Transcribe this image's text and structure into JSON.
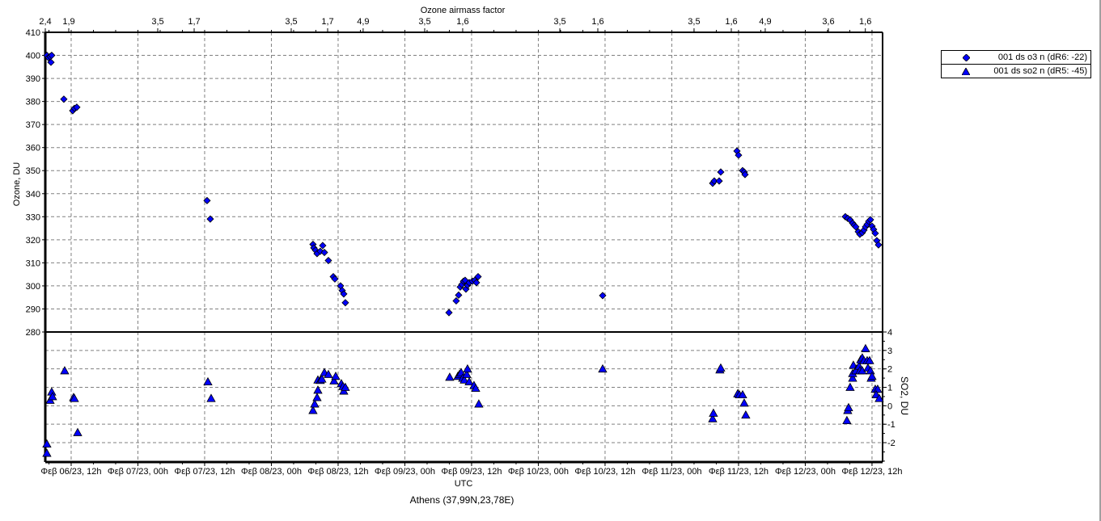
{
  "chart_data": [
    {
      "type": "scatter",
      "panel": "top",
      "xlabel": "UTC",
      "ylabel": "Ozone, DU",
      "ylim": [
        280,
        410
      ],
      "xlim": [
        "2023-02-06 07:21",
        "2023-02-12 13:54"
      ],
      "yticks": [
        280,
        290,
        300,
        310,
        320,
        330,
        340,
        350,
        360,
        370,
        380,
        390,
        400,
        410
      ],
      "grid": true,
      "series": [
        {
          "name": "001 ds o3  n (dR6: -22)",
          "marker": "diamond",
          "color": "#0000ff",
          "points": [
            [
              "2023-02-06 07:38",
              400
            ],
            [
              "2023-02-06 07:56",
              399
            ],
            [
              "2023-02-06 08:13",
              399.5
            ],
            [
              "2023-02-06 08:30",
              400
            ],
            [
              "2023-02-06 08:22",
              397
            ],
            [
              "2023-02-06 10:41",
              381
            ],
            [
              "2023-02-06 12:17",
              376
            ],
            [
              "2023-02-06 12:35",
              377
            ],
            [
              "2023-02-06 13:01",
              377.5
            ],
            [
              "2023-02-07 12:26",
              337
            ],
            [
              "2023-02-07 13:01",
              329
            ],
            [
              "2023-02-08 07:29",
              318
            ],
            [
              "2023-02-08 07:38",
              316.5
            ],
            [
              "2023-02-08 07:56",
              315.5
            ],
            [
              "2023-02-08 08:13",
              314
            ],
            [
              "2023-02-08 08:48",
              315
            ],
            [
              "2023-02-08 09:14",
              317.5
            ],
            [
              "2023-02-08 09:32",
              314.5
            ],
            [
              "2023-02-08 10:15",
              311
            ],
            [
              "2023-02-08 11:08",
              304
            ],
            [
              "2023-02-08 11:25",
              303
            ],
            [
              "2023-02-08 12:26",
              300
            ],
            [
              "2023-02-08 12:44",
              298
            ],
            [
              "2023-02-08 13:01",
              296.5
            ],
            [
              "2023-02-08 13:18",
              292.7
            ],
            [
              "2023-02-09 07:56",
              288.4
            ],
            [
              "2023-02-09 09:14",
              293.5
            ],
            [
              "2023-02-09 09:40",
              296
            ],
            [
              "2023-02-09 09:58",
              299.5
            ],
            [
              "2023-02-09 10:15",
              300.6
            ],
            [
              "2023-02-09 10:33",
              302
            ],
            [
              "2023-02-09 10:50",
              302.4
            ],
            [
              "2023-02-09 10:59",
              298.6
            ],
            [
              "2023-02-09 11:16",
              300.3
            ],
            [
              "2023-02-09 11:34",
              301.4
            ],
            [
              "2023-02-09 12:09",
              302
            ],
            [
              "2023-02-09 12:35",
              302.4
            ],
            [
              "2023-02-09 12:52",
              301.4
            ],
            [
              "2023-02-09 13:10",
              304
            ],
            [
              "2023-02-10 11:34",
              295.8
            ],
            [
              "2023-02-11 07:21",
              344.5
            ],
            [
              "2023-02-11 07:38",
              345.5
            ],
            [
              "2023-02-11 08:31",
              345.5
            ],
            [
              "2023-02-11 08:48",
              349.4
            ],
            [
              "2023-02-11 11:43",
              358.5
            ],
            [
              "2023-02-11 12:00",
              356.7
            ],
            [
              "2023-02-11 12:44",
              350
            ],
            [
              "2023-02-11 13:01",
              349.4
            ],
            [
              "2023-02-11 13:10",
              348.3
            ],
            [
              "2023-02-12 07:12",
              330
            ],
            [
              "2023-02-12 07:38",
              329.3
            ],
            [
              "2023-02-12 08:04",
              328.6
            ],
            [
              "2023-02-12 08:31",
              327.2
            ],
            [
              "2023-02-12 08:48",
              326.3
            ],
            [
              "2023-02-12 09:05",
              325.6
            ],
            [
              "2023-02-12 09:32",
              323.5
            ],
            [
              "2023-02-12 09:49",
              322.4
            ],
            [
              "2023-02-12 10:15",
              323.1
            ],
            [
              "2023-02-12 10:33",
              324.2
            ],
            [
              "2023-02-12 10:50",
              325.6
            ],
            [
              "2023-02-12 11:08",
              326.7
            ],
            [
              "2023-02-12 11:25",
              328
            ],
            [
              "2023-02-12 11:43",
              328.7
            ],
            [
              "2023-02-12 12:00",
              325.9
            ],
            [
              "2023-02-12 12:17",
              324.5
            ],
            [
              "2023-02-12 12:35",
              322.8
            ],
            [
              "2023-02-12 12:52",
              319.6
            ],
            [
              "2023-02-12 13:10",
              317.8
            ]
          ]
        }
      ]
    },
    {
      "type": "scatter",
      "panel": "bottom",
      "xlabel": "UTC",
      "ylabel": "SO2, DU",
      "ylim": [
        -3.05,
        4
      ],
      "yticks": [
        -2,
        -1,
        0,
        1,
        2,
        3,
        4
      ],
      "grid": true,
      "series": [
        {
          "name": "001 ds so2 n (dR5: -45)",
          "marker": "triangle",
          "color": "#0000ff",
          "points": [
            [
              "2023-02-06 07:38",
              -2.57
            ],
            [
              "2023-02-06 07:38",
              -2.07
            ],
            [
              "2023-02-06 08:13",
              0.3
            ],
            [
              "2023-02-06 08:30",
              0.75
            ],
            [
              "2023-02-06 08:39",
              0.5
            ],
            [
              "2023-02-06 10:50",
              1.9
            ],
            [
              "2023-02-06 12:26",
              0.45
            ],
            [
              "2023-02-06 12:35",
              0.4
            ],
            [
              "2023-02-06 13:10",
              -1.45
            ],
            [
              "2023-02-07 12:35",
              1.3
            ],
            [
              "2023-02-07 13:10",
              0.4
            ],
            [
              "2023-02-08 07:29",
              -0.25
            ],
            [
              "2023-02-08 07:47",
              0.1
            ],
            [
              "2023-02-08 08:13",
              0.45
            ],
            [
              "2023-02-08 08:22",
              0.85
            ],
            [
              "2023-02-08 08:22",
              1.4
            ],
            [
              "2023-02-08 08:48",
              1.38
            ],
            [
              "2023-02-08 09:05",
              1.45
            ],
            [
              "2023-02-08 09:32",
              1.8
            ],
            [
              "2023-02-08 10:15",
              1.7
            ],
            [
              "2023-02-08 11:16",
              1.35
            ],
            [
              "2023-02-08 11:34",
              1.6
            ],
            [
              "2023-02-08 12:35",
              1.2
            ],
            [
              "2023-02-08 12:52",
              1.05
            ],
            [
              "2023-02-08 13:01",
              0.8
            ],
            [
              "2023-02-08 13:18",
              1.0
            ],
            [
              "2023-02-09 08:04",
              1.55
            ],
            [
              "2023-02-09 09:32",
              1.6
            ],
            [
              "2023-02-09 09:49",
              1.7
            ],
            [
              "2023-02-09 10:07",
              1.8
            ],
            [
              "2023-02-09 10:24",
              1.5
            ],
            [
              "2023-02-09 10:41",
              1.4
            ],
            [
              "2023-02-09 11:08",
              1.7
            ],
            [
              "2023-02-09 11:16",
              2.0
            ],
            [
              "2023-02-09 11:34",
              1.3
            ],
            [
              "2023-02-09 12:26",
              1.1
            ],
            [
              "2023-02-09 12:44",
              0.95
            ],
            [
              "2023-02-09 13:18",
              0.1
            ],
            [
              "2023-02-10 11:34",
              2.0
            ],
            [
              "2023-02-11 07:21",
              -0.7
            ],
            [
              "2023-02-11 07:29",
              -0.4
            ],
            [
              "2023-02-11 08:39",
              1.95
            ],
            [
              "2023-02-11 08:48",
              2.05
            ],
            [
              "2023-02-11 11:51",
              0.65
            ],
            [
              "2023-02-11 12:09",
              0.6
            ],
            [
              "2023-02-11 12:44",
              0.6
            ],
            [
              "2023-02-11 13:01",
              0.15
            ],
            [
              "2023-02-11 13:18",
              -0.5
            ],
            [
              "2023-02-12 07:29",
              -0.8
            ],
            [
              "2023-02-12 07:38",
              -0.25
            ],
            [
              "2023-02-12 07:47",
              -0.1
            ],
            [
              "2023-02-12 08:04",
              1.0
            ],
            [
              "2023-02-12 08:31",
              1.5
            ],
            [
              "2023-02-12 08:31",
              1.75
            ],
            [
              "2023-02-12 08:39",
              2.2
            ],
            [
              "2023-02-12 09:14",
              2.0
            ],
            [
              "2023-02-12 09:05",
              1.9
            ],
            [
              "2023-02-12 09:40",
              2.15
            ],
            [
              "2023-02-12 09:49",
              1.9
            ],
            [
              "2023-02-12 10:15",
              1.9
            ],
            [
              "2023-02-12 09:58",
              2.5
            ],
            [
              "2023-02-12 10:15",
              2.6
            ],
            [
              "2023-02-12 10:33",
              2.45
            ],
            [
              "2023-02-12 10:50",
              3.1
            ],
            [
              "2023-02-12 11:08",
              2.45
            ],
            [
              "2023-02-12 11:16",
              2.05
            ],
            [
              "2023-02-12 11:34",
              2.45
            ],
            [
              "2023-02-12 11:43",
              1.9
            ],
            [
              "2023-02-12 11:51",
              1.5
            ],
            [
              "2023-02-12 12:00",
              1.6
            ],
            [
              "2023-02-12 12:35",
              0.9
            ],
            [
              "2023-02-12 13:01",
              0.9
            ],
            [
              "2023-02-12 12:44",
              0.6
            ],
            [
              "2023-02-12 13:18",
              0.4
            ]
          ]
        }
      ]
    }
  ],
  "top_axis": {
    "title": "Ozone airmass factor",
    "ticks": [
      [
        "2023-02-06 07:21",
        "2,4"
      ],
      [
        "2023-02-06 11:34",
        "1,9"
      ],
      [
        "2023-02-07 03:34",
        "3,5"
      ],
      [
        "2023-02-07 10:07",
        "1,7"
      ],
      [
        "2023-02-08 03:34",
        "3,5"
      ],
      [
        "2023-02-08 10:07",
        "1,7"
      ],
      [
        "2023-02-08 16:30",
        "4,9"
      ],
      [
        "2023-02-09 03:34",
        "3,5"
      ],
      [
        "2023-02-09 10:24",
        "1,6"
      ],
      [
        "2023-02-10 03:52",
        "3,5"
      ],
      [
        "2023-02-10 10:42",
        "1,6"
      ],
      [
        "2023-02-11 04:00",
        "3,5"
      ],
      [
        "2023-02-11 10:42",
        "1,6"
      ],
      [
        "2023-02-11 16:48",
        "4,9"
      ],
      [
        "2023-02-12 04:09",
        "3,6"
      ],
      [
        "2023-02-12 10:48",
        "1,6"
      ]
    ]
  },
  "x_ticks": [
    [
      "2023-02-06 12:00",
      "Φεβ 06/23, 12h"
    ],
    [
      "2023-02-07 00:00",
      "Φεβ 07/23, 00h"
    ],
    [
      "2023-02-07 12:00",
      "Φεβ 07/23, 12h"
    ],
    [
      "2023-02-08 00:00",
      "Φεβ 08/23, 00h"
    ],
    [
      "2023-02-08 12:00",
      "Φεβ 08/23, 12h"
    ],
    [
      "2023-02-09 00:00",
      "Φεβ 09/23, 00h"
    ],
    [
      "2023-02-09 12:00",
      "Φεβ 09/23, 12h"
    ],
    [
      "2023-02-10 00:00",
      "Φεβ 10/23, 00h"
    ],
    [
      "2023-02-10 12:00",
      "Φεβ 10/23, 12h"
    ],
    [
      "2023-02-11 00:00",
      "Φεβ 11/23, 00h"
    ],
    [
      "2023-02-11 12:00",
      "Φεβ 11/23, 12h"
    ],
    [
      "2023-02-12 00:00",
      "Φεβ 12/23, 00h"
    ],
    [
      "2023-02-12 12:00",
      "Φεβ 12/23, 12h"
    ]
  ],
  "x_title": "UTC",
  "station": "Athens (37,99N,23,78E)",
  "station_color": "#008b8b",
  "legend": {
    "items": [
      {
        "label": "001 ds o3  n (dR6: -22)",
        "marker": "diamond"
      },
      {
        "label": "001 ds so2 n (dR5: -45)",
        "marker": "triangle"
      }
    ]
  }
}
